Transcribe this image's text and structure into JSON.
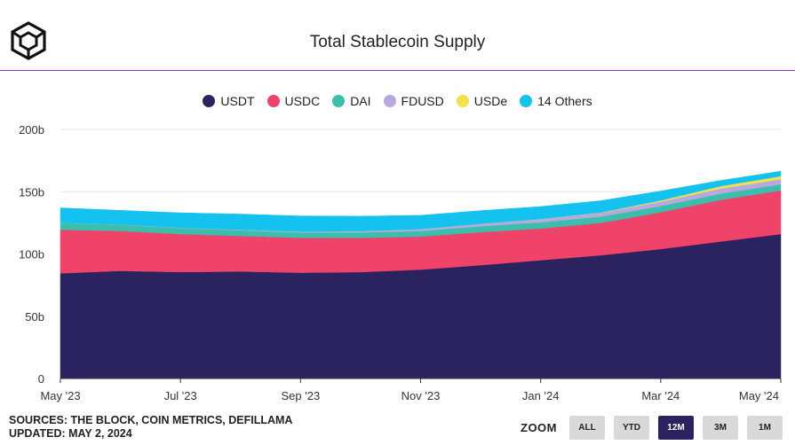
{
  "header": {
    "title": "Total Stablecoin Supply"
  },
  "legend": {
    "items": [
      {
        "label": "USDT",
        "color": "#2b2360"
      },
      {
        "label": "USDC",
        "color": "#f0436a"
      },
      {
        "label": "DAI",
        "color": "#3bbfad"
      },
      {
        "label": "FDUSD",
        "color": "#b7a9e0"
      },
      {
        "label": "USDe",
        "color": "#f4e04d"
      },
      {
        "label": "14 Others",
        "color": "#13c2ef"
      }
    ]
  },
  "chart_data": {
    "type": "area",
    "stacked": true,
    "title": "Total Stablecoin Supply",
    "y_ticks": [
      "0",
      "50b",
      "100b",
      "150b",
      "200b"
    ],
    "ylim": [
      0,
      200
    ],
    "y_unit": "billions USD",
    "x_ticks": [
      "May '23",
      "Jul '23",
      "Sep '23",
      "Nov '23",
      "Jan '24",
      "Mar '24",
      "May '24"
    ],
    "x": [
      "May '23",
      "Jun '23",
      "Jul '23",
      "Aug '23",
      "Sep '23",
      "Oct '23",
      "Nov '23",
      "Dec '23",
      "Jan '24",
      "Feb '24",
      "Mar '24",
      "Apr '24",
      "May '24"
    ],
    "series": [
      {
        "name": "USDT",
        "color": "#2b2360",
        "values": [
          84.5,
          86.5,
          85.5,
          86.0,
          85.0,
          85.5,
          87.5,
          91.0,
          95.0,
          99.0,
          104.0,
          110.0,
          116.0
        ]
      },
      {
        "name": "USDC",
        "color": "#f0436a",
        "values": [
          35.0,
          32.0,
          30.5,
          28.5,
          28.0,
          27.5,
          26.5,
          26.5,
          25.5,
          26.0,
          29.5,
          33.5,
          35.0
        ]
      },
      {
        "name": "DAI",
        "color": "#3bbfad",
        "values": [
          5.5,
          5.0,
          4.7,
          4.5,
          4.3,
          4.3,
          4.5,
          4.8,
          5.0,
          5.0,
          5.0,
          5.0,
          5.0
        ]
      },
      {
        "name": "FDUSD",
        "color": "#b7a9e0",
        "values": [
          0,
          0.2,
          0.3,
          0.5,
          0.7,
          1.0,
          1.5,
          2.0,
          2.5,
          3.0,
          3.5,
          4.0,
          4.0
        ]
      },
      {
        "name": "USDe",
        "color": "#f4e04d",
        "values": [
          0,
          0,
          0,
          0,
          0,
          0,
          0,
          0,
          0.1,
          0.3,
          1.0,
          2.0,
          2.5
        ]
      },
      {
        "name": "14 Others",
        "color": "#13c2ef",
        "values": [
          12.0,
          11.3,
          12.0,
          12.5,
          12.5,
          12.0,
          11.0,
          10.5,
          10.0,
          9.5,
          7.5,
          4.5,
          4.0
        ]
      }
    ]
  },
  "footer": {
    "sources": "SOURCES: THE BLOCK, COIN METRICS, DEFILLAMA",
    "updated": "UPDATED: MAY 2, 2024"
  },
  "zoom": {
    "label": "ZOOM",
    "buttons": [
      "ALL",
      "YTD",
      "12M",
      "3M",
      "1M"
    ],
    "active": "12M"
  }
}
